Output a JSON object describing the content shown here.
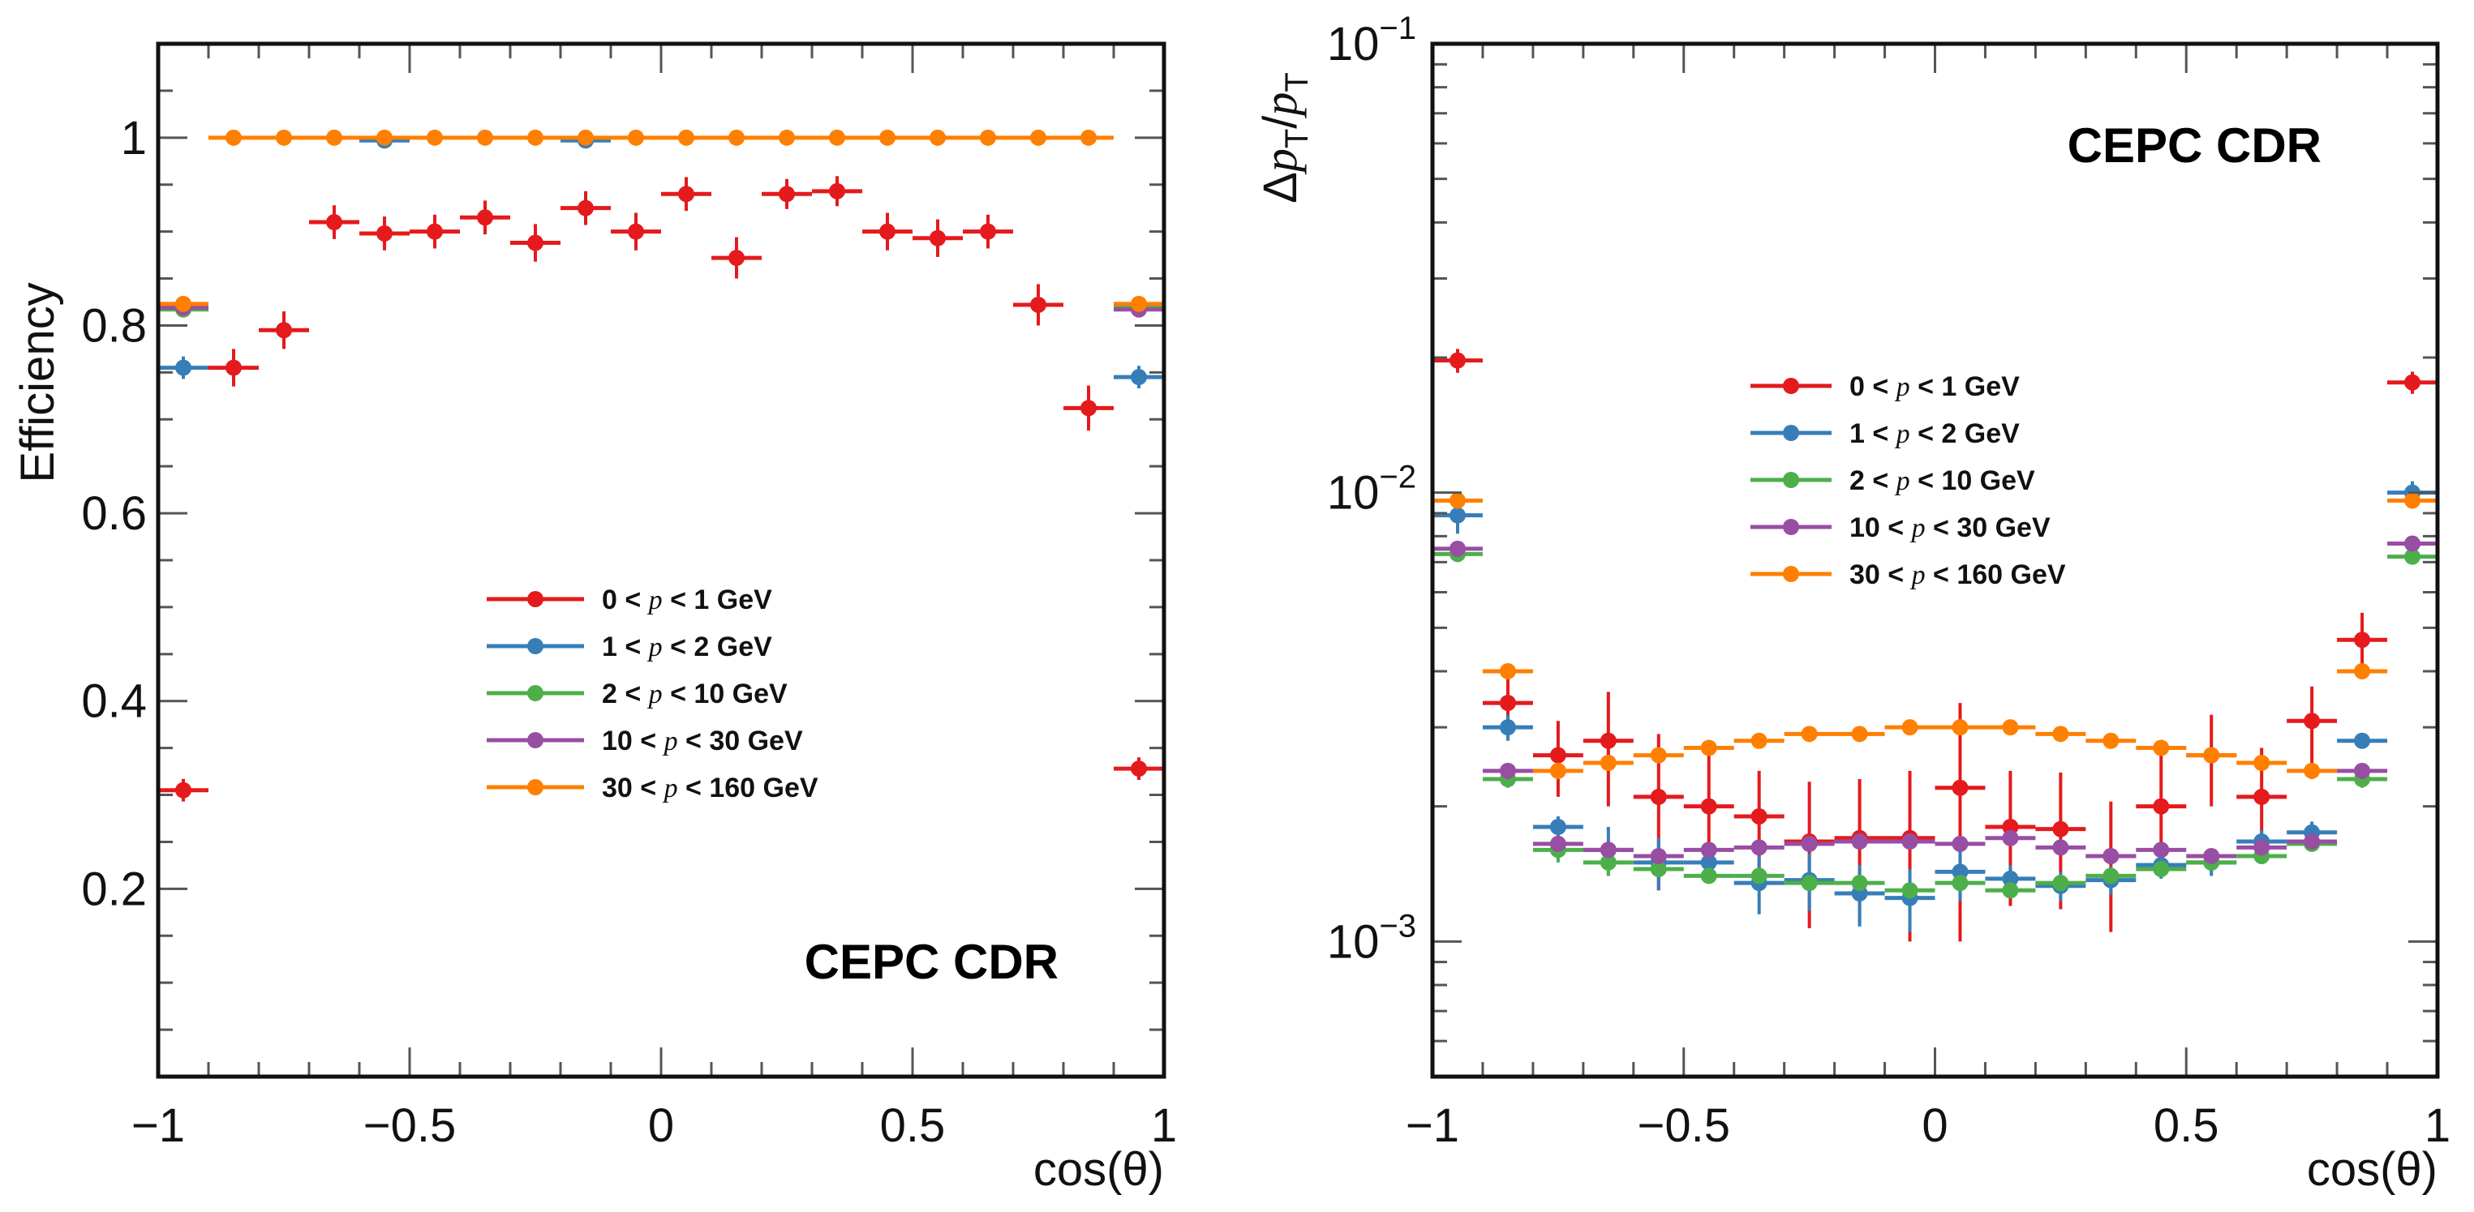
{
  "chart_data": [
    {
      "type": "scatter",
      "panel": "left",
      "title": "",
      "xlabel": "cos(θ)",
      "ylabel": "Efficiency",
      "xlim": [
        -1,
        1
      ],
      "ylim": [
        0,
        1.1
      ],
      "yscale": "linear",
      "grid": false,
      "stamp": "CEPC CDR",
      "legend_position": "center",
      "x_tick_labels": [
        "−1",
        "−0.5",
        "0",
        "0.5",
        "1"
      ],
      "x_ticks": [
        -1,
        -0.5,
        0,
        0.5,
        1
      ],
      "y_tick_labels": [
        "0.2",
        "0.4",
        "0.6",
        "0.8",
        "1"
      ],
      "y_ticks": [
        0.2,
        0.4,
        0.6,
        0.8,
        1.0
      ],
      "x": [
        -0.95,
        -0.85,
        -0.75,
        -0.65,
        -0.55,
        -0.45,
        -0.35,
        -0.25,
        -0.15,
        -0.05,
        0.05,
        0.15,
        0.25,
        0.35,
        0.45,
        0.55,
        0.65,
        0.75,
        0.85,
        0.95
      ],
      "bin_half_width": 0.05,
      "series": [
        {
          "name": "0 < p < 1 GeV",
          "color": "#e41a1c",
          "values": [
            0.305,
            0.755,
            0.795,
            0.91,
            0.898,
            0.9,
            0.915,
            0.888,
            0.925,
            0.9,
            0.94,
            0.872,
            0.94,
            0.943,
            0.9,
            0.893,
            0.9,
            0.822,
            0.712,
            0.328
          ],
          "yerr": [
            0.012,
            0.02,
            0.02,
            0.018,
            0.018,
            0.018,
            0.018,
            0.02,
            0.018,
            0.02,
            0.018,
            0.022,
            0.016,
            0.016,
            0.02,
            0.02,
            0.018,
            0.022,
            0.024,
            0.012
          ]
        },
        {
          "name": "1 < p < 2 GeV",
          "color": "#377eb8",
          "values": [
            0.755,
            null,
            null,
            null,
            0.997,
            null,
            null,
            null,
            0.997,
            null,
            null,
            null,
            null,
            null,
            null,
            null,
            null,
            null,
            null,
            0.745
          ],
          "yerr": [
            0.012,
            0,
            0,
            0,
            0.002,
            0,
            0,
            0,
            0.002,
            0,
            0,
            0,
            0,
            0,
            0,
            0,
            0,
            0,
            0,
            0.012
          ]
        },
        {
          "name": "2 < p < 10 GeV",
          "color": "#4daf4a",
          "values": [
            0.817,
            null,
            null,
            null,
            null,
            null,
            null,
            null,
            null,
            null,
            null,
            null,
            null,
            null,
            null,
            null,
            null,
            null,
            null,
            0.82
          ],
          "yerr": [
            0.004,
            0,
            0,
            0,
            0,
            0,
            0,
            0,
            0,
            0,
            0,
            0,
            0,
            0,
            0,
            0,
            0,
            0,
            0,
            0.004
          ]
        },
        {
          "name": "10 < p < 30 GeV",
          "color": "#984ea3",
          "values": [
            0.819,
            null,
            null,
            null,
            null,
            null,
            null,
            null,
            null,
            null,
            null,
            null,
            null,
            null,
            null,
            null,
            null,
            null,
            null,
            0.817
          ],
          "yerr": [
            0.004,
            0,
            0,
            0,
            0,
            0,
            0,
            0,
            0,
            0,
            0,
            0,
            0,
            0,
            0,
            0,
            0,
            0,
            0,
            0.004
          ]
        },
        {
          "name": "30 < p < 160 GeV",
          "color": "#ff7f00",
          "values": [
            0.823,
            1.0,
            1.0,
            1.0,
            1.0,
            1.0,
            1.0,
            1.0,
            1.0,
            1.0,
            1.0,
            1.0,
            1.0,
            1.0,
            1.0,
            1.0,
            1.0,
            1.0,
            1.0,
            0.823
          ],
          "yerr": [
            0.003,
            0,
            0,
            0,
            0,
            0,
            0,
            0,
            0,
            0,
            0,
            0,
            0,
            0,
            0,
            0,
            0,
            0,
            0,
            0.003
          ]
        }
      ],
      "legend": [
        {
          "lo": "0",
          "var": "p",
          "hi": "1 GeV",
          "color": "#e41a1c"
        },
        {
          "lo": "1",
          "var": "p",
          "hi": "2 GeV",
          "color": "#377eb8"
        },
        {
          "lo": "2",
          "var": "p",
          "hi": "10 GeV",
          "color": "#4daf4a"
        },
        {
          "lo": "10",
          "var": "p",
          "hi": "30 GeV",
          "color": "#984ea3"
        },
        {
          "lo": "30",
          "var": "p",
          "hi": "160 GeV",
          "color": "#ff7f00"
        }
      ]
    },
    {
      "type": "scatter",
      "panel": "right",
      "title": "",
      "xlabel": "cos(θ)",
      "ylabel": "Δp_T/p_T",
      "xlim": [
        -1,
        1
      ],
      "ylim": [
        0.0005,
        0.1
      ],
      "yscale": "log",
      "grid": false,
      "stamp": "CEPC CDR",
      "legend_position": "upper-center",
      "x_tick_labels": [
        "−1",
        "−0.5",
        "0",
        "0.5",
        "1"
      ],
      "x_ticks": [
        -1,
        -0.5,
        0,
        0.5,
        1
      ],
      "y_tick_labels": [
        "10",
        "10",
        "10"
      ],
      "y_tick_exponents": [
        "−3",
        "−2",
        "−1"
      ],
      "y_ticks": [
        0.001,
        0.01,
        0.1
      ],
      "x": [
        -0.95,
        -0.85,
        -0.75,
        -0.65,
        -0.55,
        -0.45,
        -0.35,
        -0.25,
        -0.15,
        -0.05,
        0.05,
        0.15,
        0.25,
        0.35,
        0.45,
        0.55,
        0.65,
        0.75,
        0.85,
        0.95
      ],
      "bin_half_width": 0.05,
      "series": [
        {
          "name": "0 < p < 1 GeV",
          "color": "#e41a1c",
          "values": [
            0.0197,
            0.0034,
            0.0026,
            0.0028,
            0.0021,
            0.002,
            0.0019,
            0.00167,
            0.0017,
            0.0017,
            0.0022,
            0.0018,
            0.00178,
            0.00155,
            0.002,
            0.0026,
            0.0021,
            0.0031,
            0.0047,
            0.0176
          ],
          "yerr": [
            0.0012,
            0.0005,
            0.0005,
            0.0008,
            0.0008,
            0.0006,
            0.0005,
            0.0006,
            0.0006,
            0.0007,
            0.0012,
            0.0006,
            0.0006,
            0.0005,
            0.0006,
            0.0006,
            0.0006,
            0.0006,
            0.0007,
            0.001
          ]
        },
        {
          "name": "1 < p < 2 GeV",
          "color": "#377eb8",
          "values": [
            0.0089,
            0.003,
            0.0018,
            0.0016,
            0.0015,
            0.0015,
            0.00135,
            0.00137,
            0.00128,
            0.00125,
            0.00143,
            0.00138,
            0.00133,
            0.00137,
            0.00148,
            0.0015,
            0.00167,
            0.00175,
            0.0028,
            0.01
          ],
          "yerr": [
            0.0008,
            0.0002,
            0.0001,
            0.0002,
            0.0002,
            0.0001,
            0.0002,
            0.0002,
            0.0002,
            0.0002,
            0.0002,
            0.0001,
            0.0001,
            0.0001,
            0.0001,
            0.0001,
            0.0001,
            0.0001,
            0.0001,
            0.0006
          ]
        },
        {
          "name": "2 < p < 10 GeV",
          "color": "#4daf4a",
          "values": [
            0.0073,
            0.0023,
            0.0016,
            0.0015,
            0.00145,
            0.0014,
            0.0014,
            0.00135,
            0.00135,
            0.0013,
            0.00135,
            0.0013,
            0.00135,
            0.0014,
            0.00145,
            0.0015,
            0.00155,
            0.00165,
            0.0023,
            0.0072
          ],
          "yerr": [
            0.0002,
            0.0001,
            0.0001,
            0.0001,
            5e-05,
            5e-05,
            5e-05,
            5e-05,
            5e-05,
            5e-05,
            5e-05,
            5e-05,
            5e-05,
            5e-05,
            5e-05,
            5e-05,
            5e-05,
            5e-05,
            0.0001,
            0.0002
          ]
        },
        {
          "name": "10 < p < 30 GeV",
          "color": "#984ea3",
          "values": [
            0.0075,
            0.0024,
            0.00165,
            0.0016,
            0.00155,
            0.0016,
            0.00162,
            0.00165,
            0.00167,
            0.00167,
            0.00165,
            0.0017,
            0.00162,
            0.00155,
            0.0016,
            0.00155,
            0.00162,
            0.00167,
            0.0024,
            0.0077
          ],
          "yerr": [
            0.0002,
            0.0001,
            5e-05,
            5e-05,
            5e-05,
            5e-05,
            5e-05,
            5e-05,
            5e-05,
            5e-05,
            5e-05,
            5e-05,
            5e-05,
            5e-05,
            5e-05,
            5e-05,
            5e-05,
            5e-05,
            0.0001,
            0.0002
          ]
        },
        {
          "name": "30 < p < 160 GeV",
          "color": "#ff7f00",
          "values": [
            0.0096,
            0.004,
            0.0024,
            0.0025,
            0.0026,
            0.0027,
            0.0028,
            0.0029,
            0.0029,
            0.003,
            0.003,
            0.003,
            0.0029,
            0.0028,
            0.0027,
            0.0026,
            0.0025,
            0.0024,
            0.004,
            0.0096
          ],
          "yerr": [
            0.0003,
            0.0001,
            0.0001,
            0.0001,
            5e-05,
            5e-05,
            5e-05,
            5e-05,
            5e-05,
            5e-05,
            5e-05,
            5e-05,
            5e-05,
            5e-05,
            5e-05,
            0.0001,
            0.0001,
            0.0001,
            0.0001,
            0.0003
          ]
        }
      ],
      "legend": [
        {
          "lo": "0",
          "var": "p",
          "hi": "1 GeV",
          "color": "#e41a1c"
        },
        {
          "lo": "1",
          "var": "p",
          "hi": "2 GeV",
          "color": "#377eb8"
        },
        {
          "lo": "2",
          "var": "p",
          "hi": "10 GeV",
          "color": "#4daf4a"
        },
        {
          "lo": "10",
          "var": "p",
          "hi": "30 GeV",
          "color": "#984ea3"
        },
        {
          "lo": "30",
          "var": "p",
          "hi": "160 GeV",
          "color": "#ff7f00"
        }
      ]
    }
  ]
}
